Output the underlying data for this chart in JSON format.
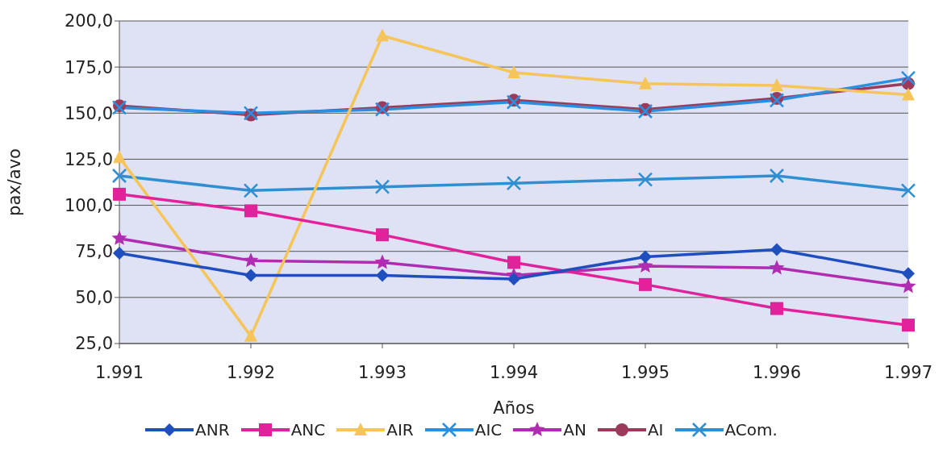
{
  "chart_data": {
    "type": "line",
    "xlabel": "Años",
    "ylabel": "pax/avo",
    "categories": [
      "1.991",
      "1.992",
      "1.993",
      "1.994",
      "1.995",
      "1.996",
      "1.997"
    ],
    "ylim": [
      25,
      200
    ],
    "yticks": [
      {
        "value": 25,
        "label": "25,0"
      },
      {
        "value": 50,
        "label": "50,0"
      },
      {
        "value": 75,
        "label": "75,0"
      },
      {
        "value": 100,
        "label": "100,0"
      },
      {
        "value": 125,
        "label": "125,0"
      },
      {
        "value": 150,
        "label": "150,0"
      },
      {
        "value": 175,
        "label": "175,0"
      },
      {
        "value": 200,
        "label": "200,0"
      }
    ],
    "grid": "y",
    "legend": "bottom",
    "series": [
      {
        "name": "ANR",
        "color": "#1f4fbf",
        "marker": "diamond",
        "values": [
          74,
          62,
          62,
          60,
          72,
          76,
          63
        ]
      },
      {
        "name": "ANC",
        "color": "#e0239a",
        "marker": "square",
        "values": [
          106,
          97,
          84,
          69,
          57,
          44,
          35
        ]
      },
      {
        "name": "AIR",
        "color": "#f5c55a",
        "marker": "triangle",
        "values": [
          126,
          29,
          192,
          172,
          166,
          165,
          160
        ]
      },
      {
        "name": "AIC",
        "color": "#2b8fe0",
        "marker": "cross",
        "values": [
          153,
          150,
          152,
          156,
          151,
          157,
          169
        ]
      },
      {
        "name": "AN",
        "color": "#b02cb0",
        "marker": "star",
        "values": [
          82,
          70,
          69,
          62,
          67,
          66,
          56
        ]
      },
      {
        "name": "AI",
        "color": "#9b3a5a",
        "marker": "circle",
        "values": [
          154,
          149,
          153,
          157,
          152,
          158,
          166
        ]
      },
      {
        "name": "ACom.",
        "color": "#2f8fd0",
        "marker": "cross",
        "values": [
          116,
          108,
          110,
          112,
          114,
          116,
          108
        ]
      }
    ]
  }
}
